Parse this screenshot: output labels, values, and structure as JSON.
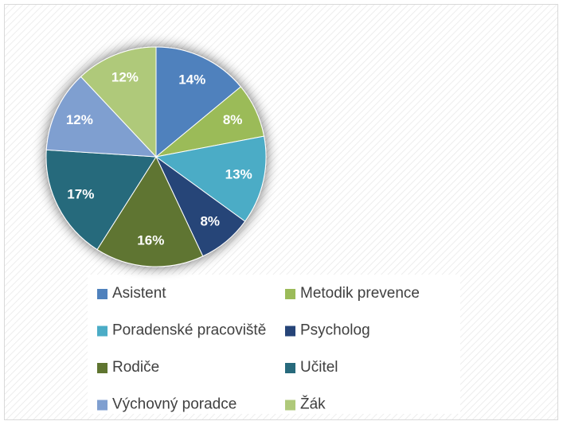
{
  "chart_data": {
    "type": "pie",
    "categories": [
      "Asistent",
      "Metodik prevence",
      "Poradenské pracoviště",
      "Psycholog",
      "Rodiče",
      "Učitel",
      "Výchovný poradce",
      "Žák"
    ],
    "values": [
      14,
      8,
      13,
      8,
      16,
      17,
      12,
      12
    ],
    "value_labels": [
      "14%",
      "8%",
      "13%",
      "8%",
      "16%",
      "17%",
      "12%",
      "12%"
    ],
    "colors": [
      "#4f81bd",
      "#9bbb59",
      "#4bacc6",
      "#264478",
      "#5f7530",
      "#276a7c",
      "#7f9fd0",
      "#afc97a"
    ],
    "legend": "bottom"
  }
}
